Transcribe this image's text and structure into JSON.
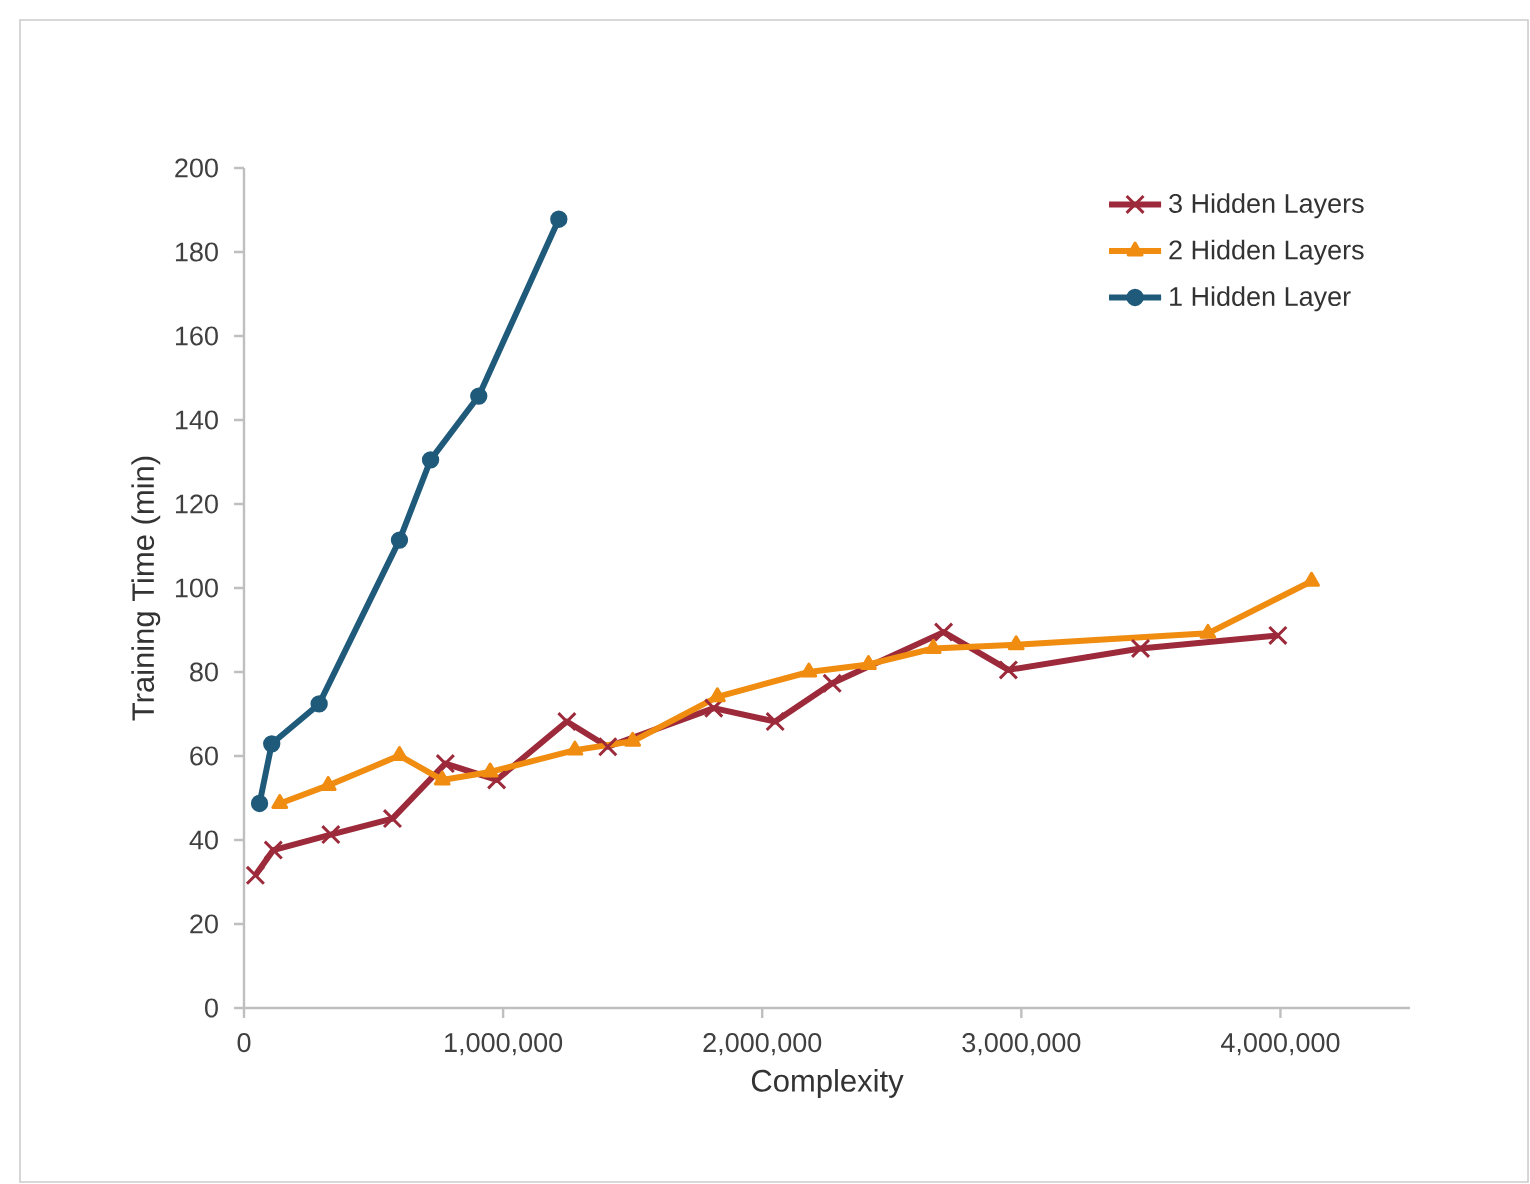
{
  "chart_data": {
    "type": "line",
    "xlabel": "Complexity",
    "ylabel": "Training Time (min)",
    "xlim": [
      0,
      4500000
    ],
    "ylim": [
      0,
      200
    ],
    "xticks": [
      0,
      {
        "value": 1000000,
        "label": "1,000,000"
      },
      {
        "value": 2000000,
        "label": "2,000,000"
      },
      {
        "value": 3000000,
        "label": "3,000,000"
      },
      {
        "value": 4000000,
        "label": "4,000,000"
      }
    ],
    "yticks": [
      0,
      20,
      40,
      60,
      80,
      100,
      120,
      140,
      160,
      180,
      200
    ],
    "grid": false,
    "legend": "top right",
    "line_style": "solid",
    "series": [
      {
        "name": "3 Hidden Layers",
        "color": "#9c2a3a",
        "marker": "cross",
        "x": [
          44000,
          113000,
          335000,
          573000,
          777000,
          975000,
          1246000,
          1404000,
          1813000,
          2050000,
          2270000,
          2700000,
          2950000,
          3460000,
          3990000
        ],
        "values": [
          31.6,
          37.6,
          41.3,
          45.1,
          58.2,
          54.3,
          68.2,
          62.2,
          71.4,
          68.2,
          77.3,
          89.5,
          80.5,
          85.6,
          88.7
        ]
      },
      {
        "name": "2 Hidden Layers",
        "color": "#f08c10",
        "marker": "triangle",
        "x": [
          138000,
          325000,
          600000,
          765000,
          950000,
          1277000,
          1500000,
          1827000,
          2180000,
          2410000,
          2660000,
          2980000,
          3720000,
          4120000
        ],
        "values": [
          48.7,
          53.0,
          60.1,
          54.3,
          56.2,
          61.4,
          63.5,
          74.1,
          80.0,
          81.8,
          85.6,
          86.5,
          89.2,
          101.6
        ]
      },
      {
        "name": "1 Hidden Layer",
        "color": "#1f5a7a",
        "marker": "circle",
        "x": [
          60000,
          107000,
          290000,
          600000,
          720000,
          906000,
          1215000
        ],
        "values": [
          48.7,
          62.9,
          72.4,
          111.4,
          130.5,
          145.7,
          187.8
        ]
      }
    ]
  }
}
